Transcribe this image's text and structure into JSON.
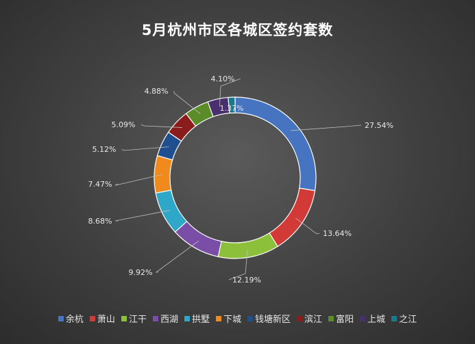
{
  "chart_data": {
    "type": "pie",
    "title": "5月杭州市区各城区签约套数",
    "categories": [
      "余杭",
      "萧山",
      "江干",
      "西湖",
      "拱墅",
      "下城",
      "钱塘新区",
      "滨江",
      "富阳",
      "上城",
      "之江"
    ],
    "values": [
      27.54,
      13.64,
      12.19,
      9.92,
      8.68,
      7.47,
      5.12,
      5.09,
      4.88,
      4.1,
      1.37
    ],
    "labels": [
      "27.54%",
      "13.64%",
      "12.19%",
      "9.92%",
      "8.68%",
      "7.47%",
      "5.12%",
      "5.09%",
      "4.88%",
      "4.10%",
      "1.37%"
    ],
    "colors": [
      "#4674c1",
      "#d13a36",
      "#8cbf3a",
      "#7a4da6",
      "#2fa7c9",
      "#f08a1c",
      "#1f4f8f",
      "#8a1c1c",
      "#5c8c2a",
      "#4a2f6e",
      "#1a7a8c"
    ],
    "legend_position": "bottom",
    "donut": true
  }
}
